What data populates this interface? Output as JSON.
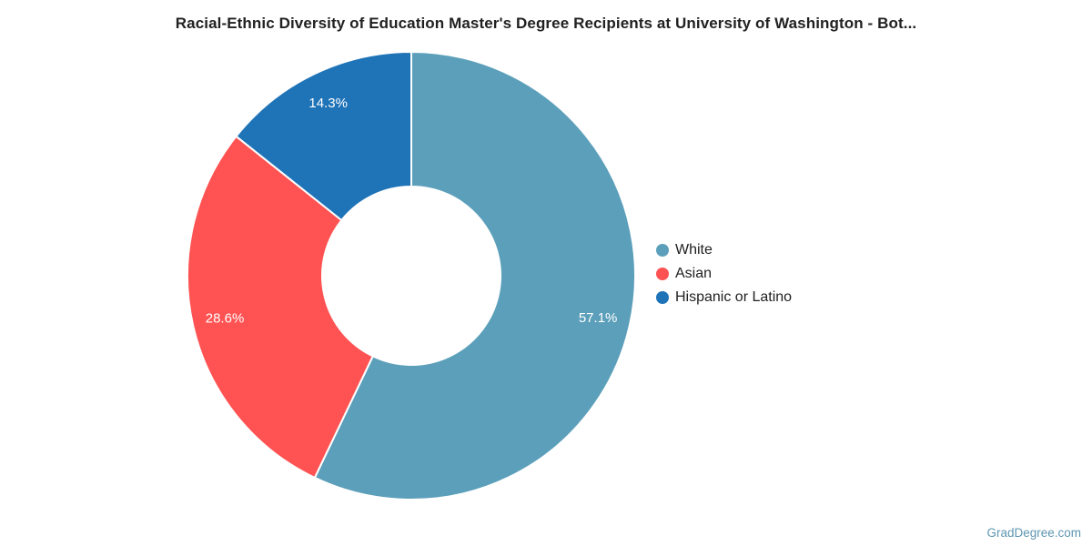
{
  "page": {
    "title": "Racial-Ethnic Diversity of Education Master's Degree Recipients at University of Washington - Bot...",
    "watermark": "GradDegree.com",
    "watermark_color": "#5E96B0",
    "background_color": "#ffffff"
  },
  "chart_data": {
    "type": "pie",
    "subtype": "donut",
    "title": "Racial-Ethnic Diversity of Education Master's Degree Recipients at University of Washington - Bot...",
    "direction": "clockwise",
    "start_angle_deg": 0,
    "inner_radius_ratio": 0.4,
    "slice_border_color": "#ffffff",
    "slice_label_color": "#ffffff",
    "legend_position": "right",
    "slices": [
      {
        "label": "White",
        "value": 57.1,
        "pct_label": "57.1%",
        "color": "#5C9FBA"
      },
      {
        "label": "Asian",
        "value": 28.6,
        "pct_label": "28.6%",
        "color": "#FF5252"
      },
      {
        "label": "Hispanic or Latino",
        "value": 14.3,
        "pct_label": "14.3%",
        "color": "#1F73B7"
      }
    ]
  }
}
